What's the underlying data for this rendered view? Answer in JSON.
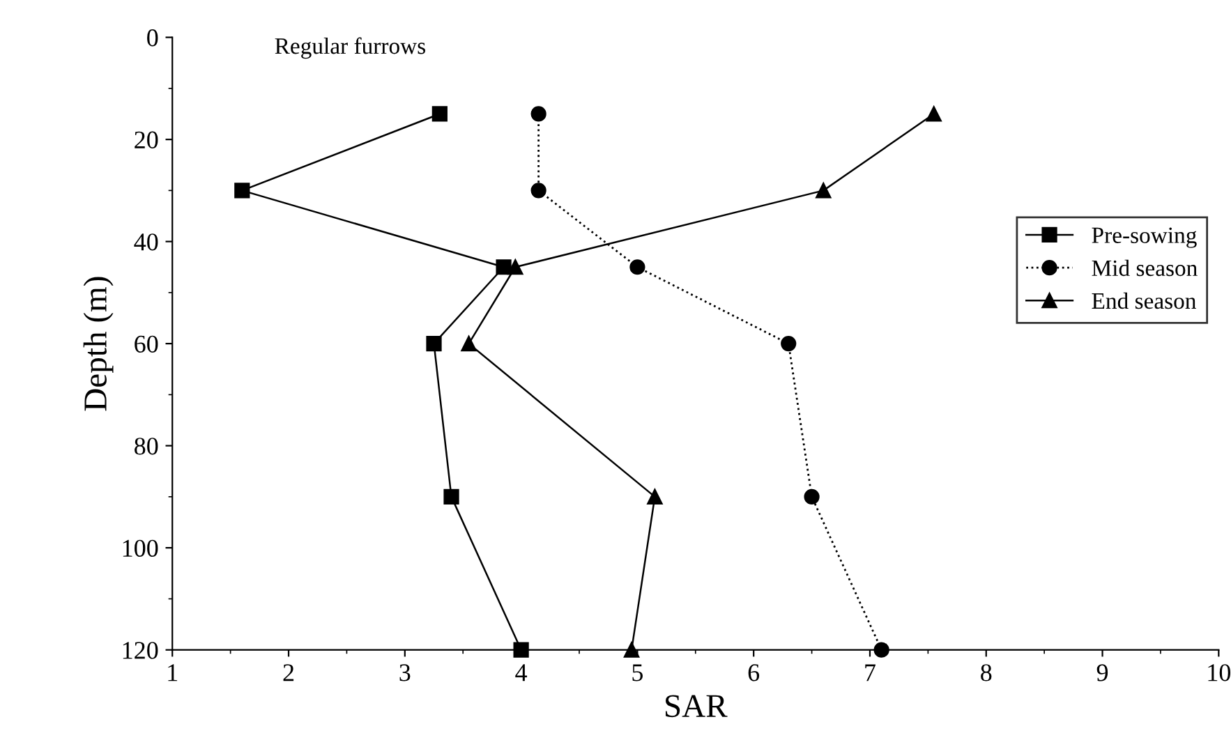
{
  "chart_data": {
    "type": "line",
    "title": "Regular furrows",
    "xlabel": "SAR",
    "ylabel": "Depth (m)",
    "xlim": [
      1,
      10
    ],
    "xticks": [
      1,
      2,
      3,
      4,
      5,
      6,
      7,
      8,
      9,
      10
    ],
    "ylim": [
      120,
      0
    ],
    "yticks": [
      0,
      20,
      40,
      60,
      80,
      100,
      120
    ],
    "grid": false,
    "legend": "right",
    "series": [
      {
        "name": "Pre-sowing",
        "color": "#000000",
        "marker": "square",
        "line_style": "solid",
        "x": [
          3.3,
          1.6,
          3.85,
          3.25,
          3.4,
          4.0
        ],
        "values": [
          15,
          30,
          45,
          60,
          90,
          120
        ]
      },
      {
        "name": "Mid season",
        "color": "#000000",
        "marker": "circle",
        "line_style": "dotted",
        "x": [
          4.15,
          4.15,
          5.0,
          6.3,
          6.5,
          7.1
        ],
        "values": [
          15,
          30,
          45,
          60,
          90,
          120
        ]
      },
      {
        "name": "End season",
        "color": "#000000",
        "marker": "triangle",
        "line_style": "solid",
        "x": [
          7.55,
          6.6,
          3.95,
          3.55,
          5.15,
          4.95
        ],
        "values": [
          15,
          30,
          45,
          60,
          90,
          120
        ]
      }
    ]
  }
}
